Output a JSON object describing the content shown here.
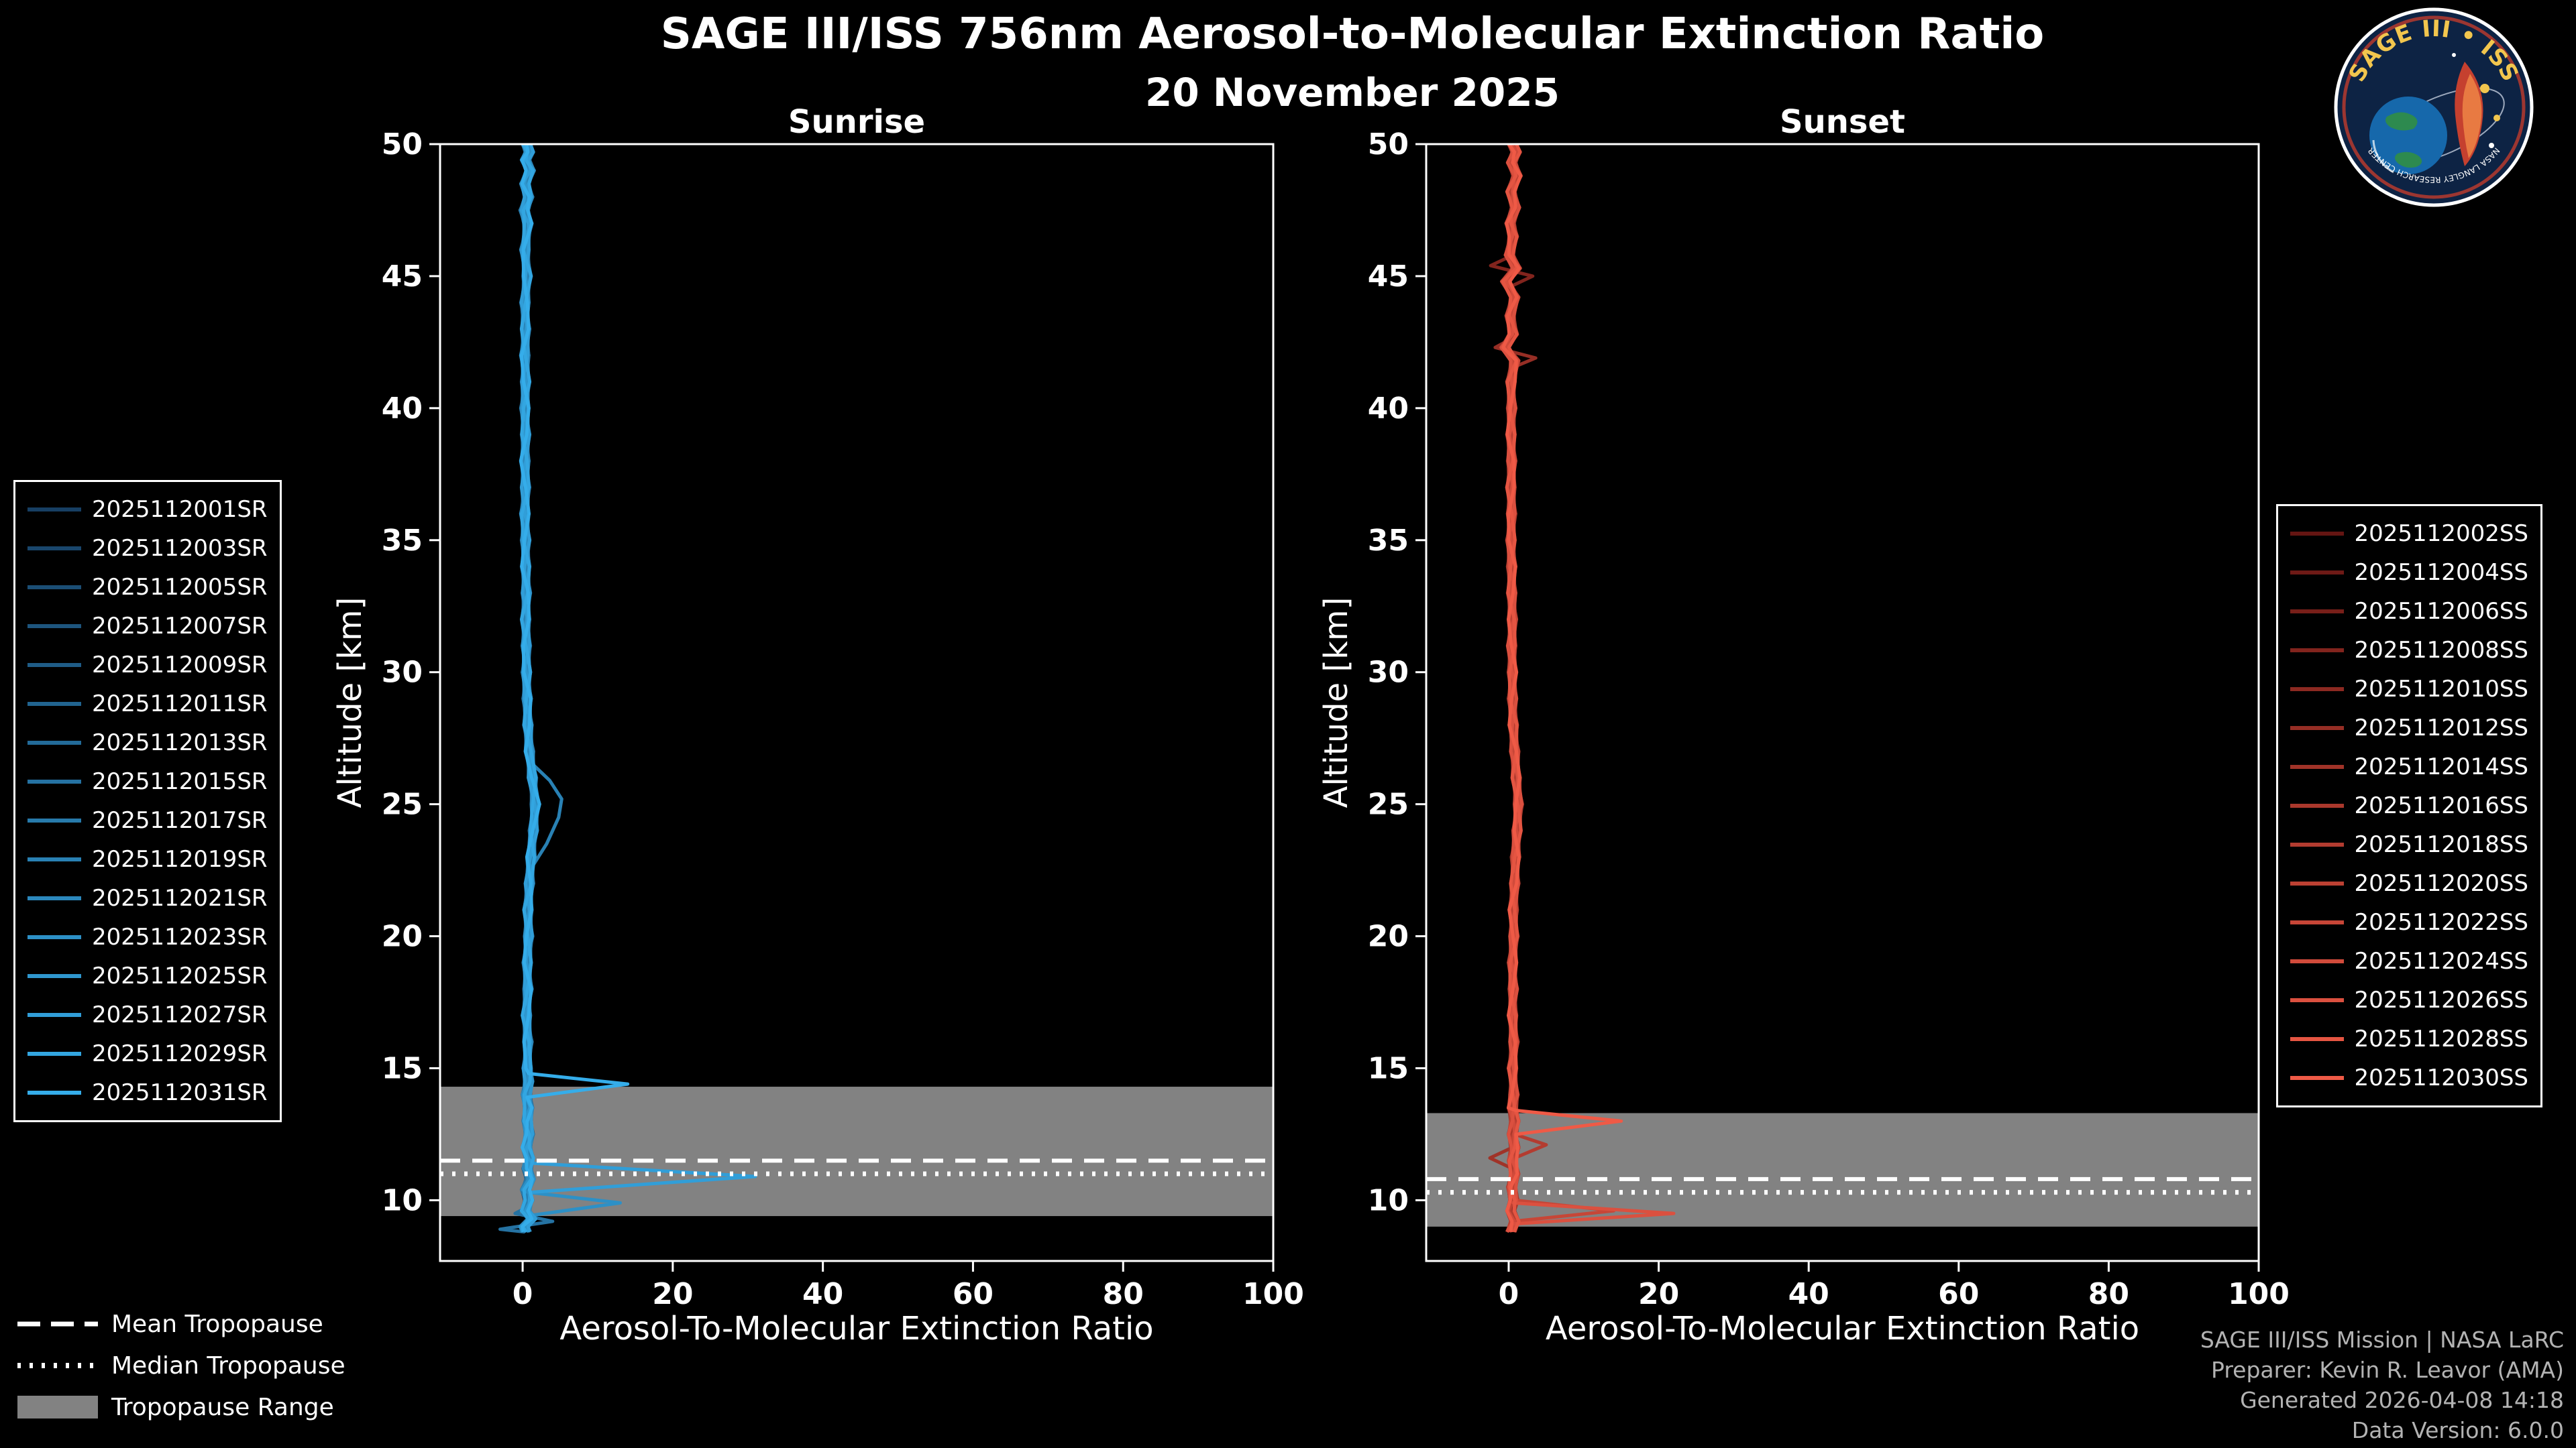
{
  "header": {
    "title": "SAGE III/ISS 756nm Aerosol-to-Molecular Extinction Ratio",
    "date": "20 November 2025"
  },
  "logo": {
    "title": "SAGE III • ISS",
    "footer": "NASA LANGLEY RESEARCH CENTER"
  },
  "tropopause_legend": [
    {
      "style": "dashed",
      "label": "Mean Tropopause"
    },
    {
      "style": "dotted",
      "label": "Median Tropopause"
    },
    {
      "style": "band",
      "label": "Tropopause Range"
    }
  ],
  "credits": {
    "lines": [
      "SAGE III/ISS Mission | NASA LaRC",
      "Preparer: Kevin R. Leavor (AMA)",
      "Generated 2026-04-08 14:18",
      "Data Version: 6.0.0"
    ]
  },
  "colors": {
    "background": "#000000",
    "axis": "#ffffff",
    "tropopause_band": "#828282",
    "tropopause_lines": "#ffffff",
    "credits_text": "#b3b3b3"
  },
  "chart_data": [
    {
      "id": "sunrise",
      "type": "line",
      "title": "Sunrise",
      "xlabel": "Aerosol-To-Molecular Extinction Ratio",
      "ylabel": "Altitude [km]",
      "xlim": [
        -11,
        100
      ],
      "ylim": [
        7.7,
        50
      ],
      "xticks": [
        0,
        20,
        40,
        60,
        80,
        100
      ],
      "yticks": [
        10,
        15,
        20,
        25,
        30,
        35,
        40,
        45,
        50
      ],
      "grid": false,
      "legend_position": "outside-left",
      "line_color_dark": "#173f63",
      "line_color_bright": "#35adea",
      "tropopause": {
        "mean_km": 11.5,
        "median_km": 11.0,
        "range_km": [
          9.4,
          14.3
        ]
      },
      "series": [
        "2025112001SR",
        "2025112003SR",
        "2025112005SR",
        "2025112007SR",
        "2025112009SR",
        "2025112011SR",
        "2025112013SR",
        "2025112015SR",
        "2025112017SR",
        "2025112019SR",
        "2025112021SR",
        "2025112023SR",
        "2025112025SR",
        "2025112027SR",
        "2025112029SR",
        "2025112031SR"
      ],
      "default_profile": [
        [
          8.8,
          0.5
        ],
        [
          9.0,
          0.2
        ],
        [
          9.3,
          1.2
        ],
        [
          9.6,
          0.4
        ],
        [
          10.0,
          0.8
        ],
        [
          10.4,
          0.4
        ],
        [
          10.8,
          1.0
        ],
        [
          11.2,
          0.6
        ],
        [
          11.6,
          0.9
        ],
        [
          12.0,
          0.5
        ],
        [
          12.5,
          0.9
        ],
        [
          13.0,
          0.6
        ],
        [
          13.5,
          0.8
        ],
        [
          14.0,
          0.5
        ],
        [
          14.5,
          0.8
        ],
        [
          15.0,
          0.6
        ],
        [
          16.0,
          0.7
        ],
        [
          17.0,
          0.5
        ],
        [
          18.0,
          0.7
        ],
        [
          19.0,
          0.6
        ],
        [
          20.0,
          0.8
        ],
        [
          21.0,
          0.7
        ],
        [
          22.0,
          0.9
        ],
        [
          23.0,
          1.1
        ],
        [
          24.0,
          1.4
        ],
        [
          25.0,
          1.7
        ],
        [
          26.0,
          1.3
        ],
        [
          27.0,
          0.9
        ],
        [
          28.0,
          0.7
        ],
        [
          29.0,
          0.6
        ],
        [
          30.0,
          0.5
        ],
        [
          31.0,
          0.5
        ],
        [
          32.0,
          0.4
        ],
        [
          33.0,
          0.5
        ],
        [
          34.0,
          0.4
        ],
        [
          35.0,
          0.4
        ],
        [
          36.0,
          0.3
        ],
        [
          37.0,
          0.4
        ],
        [
          38.0,
          0.3
        ],
        [
          39.0,
          0.4
        ],
        [
          40.0,
          0.3
        ],
        [
          41.0,
          0.4
        ],
        [
          42.0,
          0.3
        ],
        [
          43.0,
          0.4
        ],
        [
          44.0,
          0.3
        ],
        [
          45.0,
          0.6
        ],
        [
          46.0,
          0.3
        ],
        [
          47.0,
          0.7
        ],
        [
          47.5,
          0.2
        ],
        [
          48.0,
          0.8
        ],
        [
          48.5,
          0.3
        ],
        [
          49.0,
          1.0
        ],
        [
          49.4,
          0.4
        ],
        [
          49.7,
          0.9
        ],
        [
          50.0,
          0.5
        ]
      ],
      "overrides": [
        {
          "series": 7,
          "points": [
            [
              8.9,
              -3.0
            ],
            [
              9.2,
              4.0
            ],
            [
              9.5,
              -1.0
            ],
            [
              9.8,
              1.0
            ]
          ]
        },
        {
          "series": 9,
          "points": [
            [
              22.6,
              1.2
            ],
            [
              23.5,
              3.2
            ],
            [
              24.5,
              4.8
            ],
            [
              25.2,
              5.2
            ],
            [
              25.9,
              3.6
            ],
            [
              26.5,
              1.4
            ]
          ]
        },
        {
          "series": 11,
          "points": [
            [
              9.4,
              0.5
            ],
            [
              9.9,
              13.0
            ],
            [
              10.3,
              0.8
            ]
          ]
        },
        {
          "series": 13,
          "points": [
            [
              10.3,
              1.0
            ],
            [
              10.9,
              31.0
            ],
            [
              11.4,
              1.5
            ]
          ]
        },
        {
          "series": 15,
          "points": [
            [
              13.9,
              0.6
            ],
            [
              14.4,
              14.0
            ],
            [
              14.8,
              0.8
            ]
          ]
        }
      ]
    },
    {
      "id": "sunset",
      "type": "line",
      "title": "Sunset",
      "xlabel": "Aerosol-To-Molecular Extinction Ratio",
      "ylabel": "Altitude [km]",
      "xlim": [
        -11,
        100
      ],
      "ylim": [
        7.7,
        50
      ],
      "xticks": [
        0,
        20,
        40,
        60,
        80,
        100
      ],
      "yticks": [
        10,
        15,
        20,
        25,
        30,
        35,
        40,
        45,
        50
      ],
      "grid": false,
      "legend_position": "outside-right",
      "line_color_dark": "#641512",
      "line_color_bright": "#ef5a46",
      "tropopause": {
        "mean_km": 10.8,
        "median_km": 10.3,
        "range_km": [
          9.0,
          13.3
        ]
      },
      "series": [
        "2025112002SS",
        "2025112004SS",
        "2025112006SS",
        "2025112008SS",
        "2025112010SS",
        "2025112012SS",
        "2025112014SS",
        "2025112016SS",
        "2025112018SS",
        "2025112020SS",
        "2025112022SS",
        "2025112024SS",
        "2025112026SS",
        "2025112028SS",
        "2025112030SS"
      ],
      "default_profile": [
        [
          8.8,
          0.3
        ],
        [
          9.2,
          0.8
        ],
        [
          9.6,
          0.3
        ],
        [
          10.0,
          0.7
        ],
        [
          10.5,
          0.4
        ],
        [
          11.0,
          0.8
        ],
        [
          11.5,
          0.5
        ],
        [
          12.0,
          0.8
        ],
        [
          12.5,
          0.5
        ],
        [
          13.0,
          0.8
        ],
        [
          13.5,
          0.5
        ],
        [
          14.0,
          0.7
        ],
        [
          15.0,
          0.5
        ],
        [
          16.0,
          0.7
        ],
        [
          17.0,
          0.5
        ],
        [
          18.0,
          0.6
        ],
        [
          19.0,
          0.5
        ],
        [
          20.0,
          0.7
        ],
        [
          21.0,
          0.6
        ],
        [
          22.0,
          0.8
        ],
        [
          23.0,
          0.9
        ],
        [
          24.0,
          1.1
        ],
        [
          25.0,
          1.3
        ],
        [
          26.0,
          1.0
        ],
        [
          27.0,
          0.8
        ],
        [
          28.0,
          0.6
        ],
        [
          29.0,
          0.5
        ],
        [
          30.0,
          0.5
        ],
        [
          31.0,
          0.4
        ],
        [
          32.0,
          0.5
        ],
        [
          33.0,
          0.4
        ],
        [
          34.0,
          0.4
        ],
        [
          35.0,
          0.3
        ],
        [
          36.0,
          0.4
        ],
        [
          37.0,
          0.3
        ],
        [
          38.0,
          0.4
        ],
        [
          39.0,
          0.3
        ],
        [
          40.0,
          0.4
        ],
        [
          41.0,
          0.3
        ],
        [
          41.8,
          0.8
        ],
        [
          42.3,
          -0.5
        ],
        [
          42.8,
          0.6
        ],
        [
          43.5,
          0.2
        ],
        [
          44.2,
          0.8
        ],
        [
          44.8,
          -0.4
        ],
        [
          45.3,
          1.0
        ],
        [
          45.8,
          0.1
        ],
        [
          46.5,
          0.6
        ],
        [
          47.0,
          0.2
        ],
        [
          47.6,
          0.9
        ],
        [
          48.2,
          0.3
        ],
        [
          48.8,
          1.1
        ],
        [
          49.3,
          0.4
        ],
        [
          49.7,
          1.0
        ],
        [
          50.0,
          0.5
        ]
      ],
      "overrides": [
        {
          "series": 3,
          "points": [
            [
              44.6,
              0.2
            ],
            [
              45.0,
              3.2
            ],
            [
              45.4,
              -2.4
            ],
            [
              45.8,
              0.6
            ]
          ]
        },
        {
          "series": 5,
          "points": [
            [
              41.5,
              0.2
            ],
            [
              41.9,
              3.6
            ],
            [
              42.3,
              -1.8
            ],
            [
              42.7,
              0.8
            ]
          ]
        },
        {
          "series": 6,
          "points": [
            [
              11.2,
              0.5
            ],
            [
              11.6,
              -2.5
            ],
            [
              12.0,
              0.5
            ]
          ]
        },
        {
          "series": 8,
          "points": [
            [
              11.6,
              0.8
            ],
            [
              12.1,
              5.0
            ],
            [
              12.5,
              0.8
            ]
          ]
        },
        {
          "series": 10,
          "points": [
            [
              9.2,
              0.6
            ],
            [
              9.6,
              14.0
            ],
            [
              10.0,
              0.8
            ]
          ]
        },
        {
          "series": 12,
          "points": [
            [
              9.1,
              0.4
            ],
            [
              9.5,
              22.0
            ],
            [
              9.9,
              0.6
            ]
          ]
        },
        {
          "series": 14,
          "points": [
            [
              12.5,
              1.0
            ],
            [
              13.0,
              15.0
            ],
            [
              13.4,
              1.0
            ]
          ]
        }
      ]
    }
  ]
}
